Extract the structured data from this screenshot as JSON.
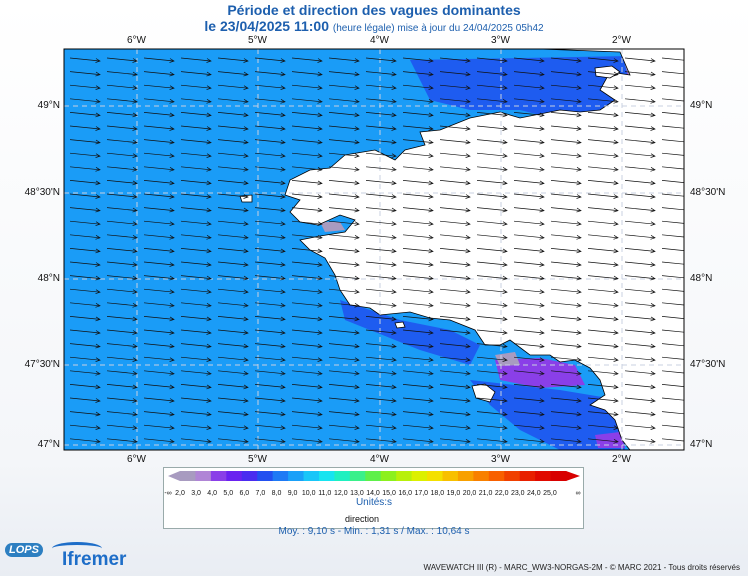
{
  "title": "Période et direction des vagues dominantes",
  "subtitle_date": "le 23/04/2025 11:00",
  "subtitle_note": "(heure légale) mise à jour du 24/04/2025 05h42",
  "lon_labels": [
    "6°W",
    "5°W",
    "4°W",
    "3°W",
    "2°W"
  ],
  "lat_labels": [
    "49°N",
    "48°30'N",
    "48°N",
    "47°30'N",
    "47°N"
  ],
  "legend": {
    "tick_labels": [
      "-∞",
      "2,0",
      "3,0",
      "4,0",
      "5,0",
      "6,0",
      "7,0",
      "8,0",
      "9,0",
      "10,0",
      "11,0",
      "12,0",
      "13,0",
      "14,0",
      "15,0",
      "16,0",
      "17,0",
      "18,0",
      "19,0",
      "20,0",
      "21,0",
      "22,0",
      "23,0",
      "24,0",
      "25,0",
      "∞"
    ],
    "colors": [
      "#a89bc0",
      "#b085d6",
      "#8a3fe8",
      "#6a22f0",
      "#4a2cf0",
      "#2250f0",
      "#1e7af5",
      "#1aa0f8",
      "#19c6f8",
      "#17e4f0",
      "#1ff0c0",
      "#3af08a",
      "#5ef04a",
      "#8cf01e",
      "#b8f00a",
      "#dcf000",
      "#f4e000",
      "#f8c000",
      "#f8a000",
      "#f88000",
      "#f86000",
      "#f04000",
      "#e82000",
      "#e00a00",
      "#d80000"
    ],
    "unit": "Unités:s",
    "direction_label": "direction"
  },
  "stats": "Moy. : 9,10 s   -   Min. : 1,31 s / Max. : 10,64 s",
  "footer": "WAVEWATCH III (R) - MARC_WW3-NORGAS-2M - © MARC 2021 - Tous droits réservés",
  "logos": {
    "lops": "LOPS",
    "ifremer": "Ifremer"
  },
  "colors": {
    "sea": "#1a9cf7",
    "sea_dark": "#1e5cf0",
    "sea_purple": "#8a3fe8",
    "land": "#ffffff",
    "coast": "#000000",
    "grid": "#c8d0e0",
    "title": "#1d5fae"
  }
}
